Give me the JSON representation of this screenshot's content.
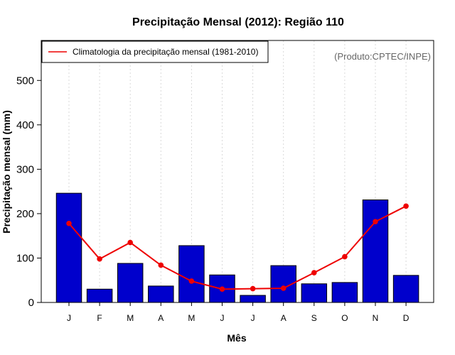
{
  "chart_data": {
    "type": "bar",
    "title": "Precipitação Mensal (2012): Região 110",
    "xlabel": "Mês",
    "ylabel": "Precipitação mensal (mm)",
    "ylim": [
      0,
      590
    ],
    "yticks": [
      0,
      100,
      200,
      300,
      400,
      500
    ],
    "categories": [
      "J",
      "F",
      "M",
      "A",
      "M",
      "J",
      "J",
      "A",
      "S",
      "O",
      "N",
      "D"
    ],
    "series": [
      {
        "name": "Precipitação mensal (2012)",
        "type": "bar",
        "values": [
          246,
          30,
          88,
          37,
          128,
          62,
          16,
          83,
          42,
          45,
          231,
          61
        ],
        "color": "#0000cc"
      },
      {
        "name": "Climatologia da precipitação mensal (1981-2010)",
        "type": "line",
        "values": [
          178,
          98,
          135,
          84,
          48,
          30,
          31,
          32,
          67,
          103,
          182,
          217
        ],
        "color": "#ee0000"
      }
    ],
    "legend": {
      "position": "top-left",
      "entries": [
        "Climatologia da precipitação mensal (1981-2010)"
      ]
    },
    "grid": "vertical-dotted",
    "annotation": "(Produto:CPTEC/INPE)"
  }
}
